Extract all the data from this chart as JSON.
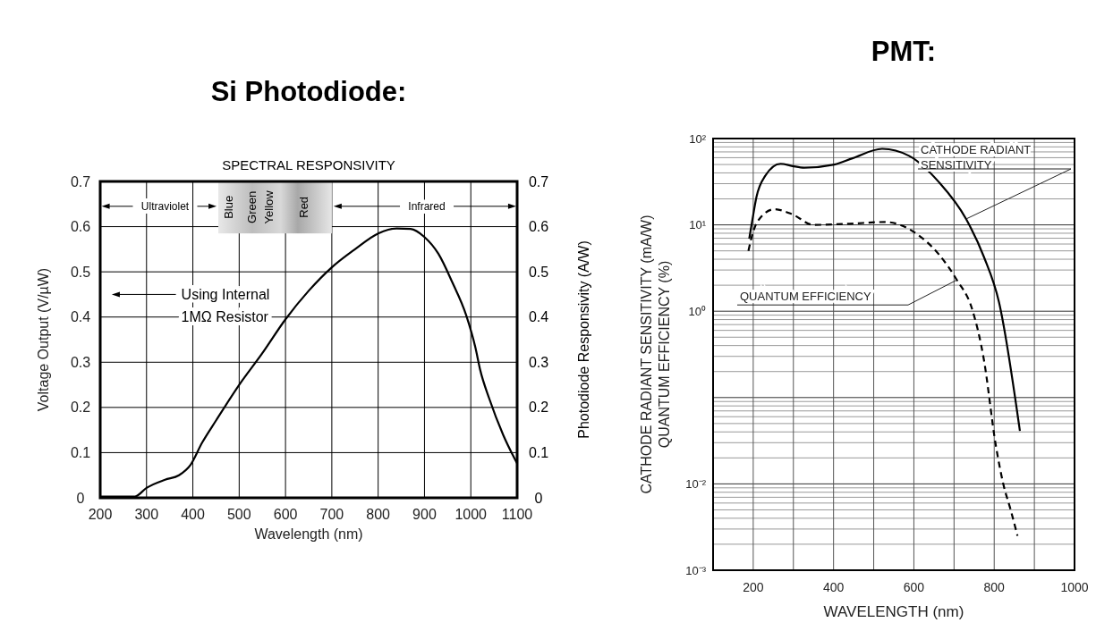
{
  "chart_data": [
    {
      "type": "line",
      "title": "Si Photodiode:",
      "subtitle": "SPECTRAL RESPONSIVITY",
      "xlabel": "Wavelength (nm)",
      "ylabel": "Voltage Output (V/µW)",
      "y2label": "Photodiode Responsivity (A/W)",
      "series": [
        {
          "color": "#000000",
          "line_style": "solid",
          "x": [
            200,
            275,
            300,
            340,
            370,
            395,
            420,
            450,
            500,
            550,
            600,
            650,
            700,
            750,
            800,
            840,
            870,
            900,
            930,
            960,
            990,
            1010,
            1020,
            1040,
            1070,
            1100
          ],
          "values": [
            0.003,
            0.003,
            0.022,
            0.04,
            0.05,
            0.073,
            0.122,
            0.171,
            0.25,
            0.32,
            0.395,
            0.458,
            0.51,
            0.55,
            0.585,
            0.596,
            0.595,
            0.577,
            0.54,
            0.477,
            0.404,
            0.332,
            0.284,
            0.219,
            0.139,
            0.076
          ]
        }
      ],
      "xlim": [
        200,
        1100
      ],
      "xticks": [
        200,
        300,
        400,
        500,
        600,
        700,
        800,
        900,
        1000,
        1100
      ],
      "ylim": [
        0,
        0.7
      ],
      "yticks": [
        0,
        0.1,
        0.2,
        0.3,
        0.4,
        0.5,
        0.6,
        0.7
      ],
      "y2lim": [
        0,
        0.7
      ],
      "y2ticks": [
        0,
        0.1,
        0.2,
        0.3,
        0.4,
        0.5,
        0.6,
        0.7
      ],
      "grid": true,
      "annotations": [
        "Ultraviolet",
        "Infrared",
        "Blue",
        "Green",
        "Yellow",
        "Red",
        "Using Internal",
        "1MΩ Resistor"
      ]
    },
    {
      "type": "line",
      "title": "PMT:",
      "xlabel": "WAVELENGTH (nm)",
      "ylabel": "CATHODE RADIANT SENSITIVITY (mA/W)\nQUANTUM EFFICIENCY (%)",
      "log": "y",
      "series": [
        {
          "color": "#000000",
          "line_style": "solid",
          "x": [
            190,
            197,
            208,
            230,
            268,
            298,
            327,
            402,
            447,
            521,
            588,
            663,
            730,
            774,
            812,
            864
          ],
          "values": [
            6.9,
            10.8,
            21,
            37,
            51,
            48,
            46,
            50,
            59,
            76,
            63,
            31,
            11.7,
            4.3,
            1.27,
            0.041
          ]
        },
        {
          "color": "#000000",
          "line_style": "dashed",
          "x": [
            188,
            195,
            212,
            253,
            298,
            350,
            439,
            529,
            566,
            603,
            663,
            707,
            745,
            774,
            804,
            823,
            841,
            858
          ],
          "values": [
            5,
            6.9,
            11.2,
            15.2,
            13.2,
            10,
            10.3,
            10.8,
            10,
            8.1,
            4.5,
            2.3,
            1.06,
            0.28,
            0.028,
            0.0098,
            0.005,
            0.0025
          ]
        }
      ],
      "xlim": [
        100,
        1000
      ],
      "xticks": [
        200,
        {
          "value": 300,
          "label": null
        },
        400,
        {
          "value": 500,
          "label": null
        },
        600,
        {
          "value": 700,
          "label": null
        },
        800,
        {
          "value": 900,
          "label": null
        },
        1000
      ],
      "ylim": [
        0.001,
        100
      ],
      "yticks": [
        {
          "value": 100,
          "label": "10²"
        },
        {
          "value": 10,
          "label": "10¹"
        },
        {
          "value": 1,
          "label": "10⁰"
        },
        {
          "value": 0.01,
          "label": "10⁻²"
        },
        {
          "value": 0.001,
          "label": "10⁻³"
        }
      ],
      "grid": true,
      "annotations": [
        {
          "text": "CATHODE RADIANT\nSENSITIVITY",
          "x": 730,
          "y": 11.7
        },
        {
          "text": "QUANTUM EFFICIENCY",
          "x": 707,
          "y": 2.3
        }
      ]
    }
  ]
}
